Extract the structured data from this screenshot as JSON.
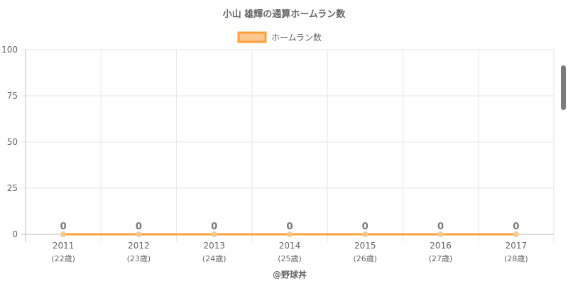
{
  "chart_data": {
    "type": "line",
    "title": "小山 雄輝の通算ホームラン数",
    "categories": [
      "2011",
      "2012",
      "2013",
      "2014",
      "2015",
      "2016",
      "2017"
    ],
    "category_sublabels": [
      "(22歳)",
      "(23歳)",
      "(24歳)",
      "(25歳)",
      "(26歳)",
      "(27歳)",
      "(28歳)"
    ],
    "series": [
      {
        "name": "ホームラン数",
        "values": [
          0,
          0,
          0,
          0,
          0,
          0,
          0
        ]
      }
    ],
    "yticks": [
      0,
      25,
      50,
      75,
      100
    ],
    "ylim": [
      0,
      100
    ],
    "grid": true,
    "legend_position": "top",
    "data_labels": true,
    "colors": {
      "line": "#f9a13a",
      "fill": "#fcc88e",
      "text": "#666666",
      "label": "#777777",
      "grid": "#e6e6e6"
    }
  },
  "footer": {
    "credit": "@野球丼"
  }
}
